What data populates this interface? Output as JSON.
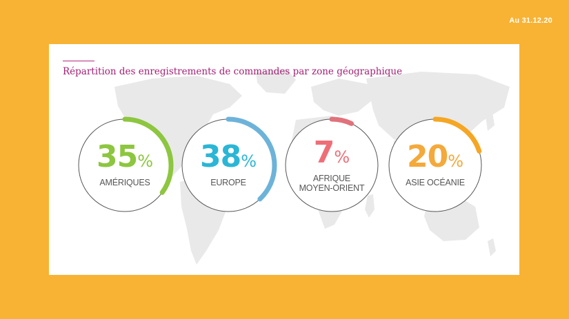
{
  "date_label": "Au 31.12.20",
  "chart_data": {
    "type": "donut",
    "title": "Répartition des enregistrements de commandes par zone géographique",
    "unit": "%",
    "items": [
      {
        "label": "AMÉRIQUES",
        "value": 35,
        "value_text": "35",
        "color": "#8DC63F"
      },
      {
        "label": "EUROPE",
        "value": 38,
        "value_text": "38",
        "color": "#6DB3D9",
        "text_color": "#2BB6D6"
      },
      {
        "label": "AFRIQUE\nMOYEN-ORIENT",
        "value": 7,
        "value_text": "7",
        "color": "#E0727B",
        "text_color": "#EE6E78"
      },
      {
        "label": "ASIE OCÉANIE",
        "value": 20,
        "value_text": "20",
        "color": "#F5A623",
        "text_color": "#F4A93A"
      }
    ]
  }
}
